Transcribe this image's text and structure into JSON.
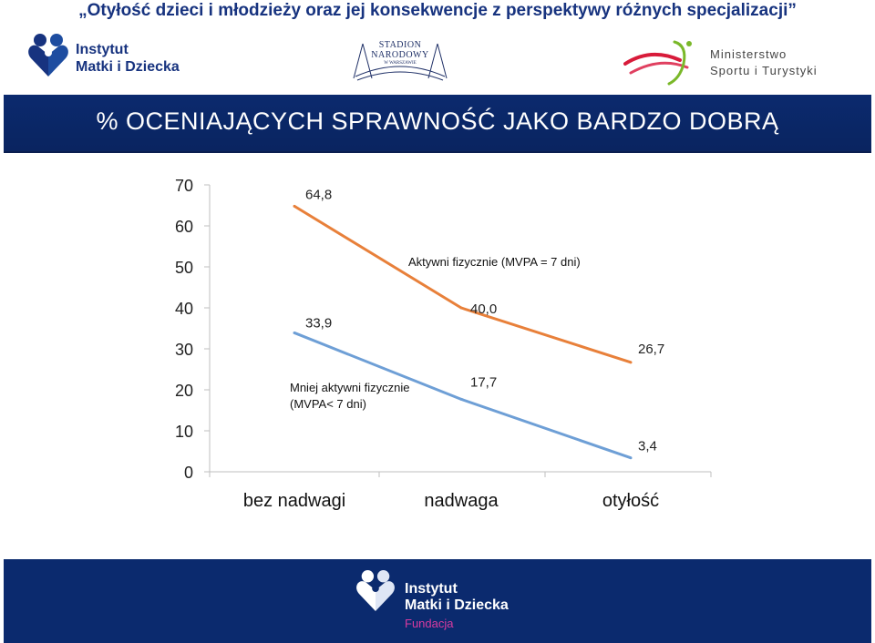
{
  "header": {
    "title": "„Otyłość dzieci i młodzieży oraz jej konsekwencje z perspektywy różnych specjalizacji”"
  },
  "logos": {
    "imid": {
      "line1": "Instytut",
      "line2": "Matki i Dziecka",
      "colors": [
        "#17337f",
        "#1e4da0"
      ]
    },
    "stadion": {
      "line1": "STADION",
      "line2": "NARODOWY",
      "line3": "W WARSZAWIE"
    },
    "ministry": {
      "line1": "Ministerstwo",
      "line2": "Sportu i Turystyki"
    },
    "footer": {
      "line1": "Instytut",
      "line2": "Matki i Dziecka",
      "line3": "Fundacja"
    }
  },
  "banner": {
    "title": "% OCENIAJĄCYCH SPRAWNOŚĆ JAKO BARDZO DOBRĄ",
    "color": "#0b2a6e"
  },
  "chart_data": {
    "type": "line",
    "categories": [
      "bez nadwagi",
      "nadwaga",
      "otyłość"
    ],
    "yticks": [
      "0",
      "10",
      "20",
      "30",
      "40",
      "50",
      "60",
      "70"
    ],
    "ylim": [
      0,
      70
    ],
    "grid": false,
    "series": [
      {
        "name": "Aktywni fizycznie (MVPA = 7 dni)",
        "values": [
          64.8,
          40.0,
          26.7
        ],
        "labels": [
          "64,8",
          "40,0",
          "26,7"
        ],
        "color": "#e8803a"
      },
      {
        "name": "Mniej aktywni fizycznie (MVPA< 7 dni)",
        "name_lines": [
          "Mniej aktywni fizycznie",
          "(MVPA< 7 dni)"
        ],
        "values": [
          33.9,
          17.7,
          3.4
        ],
        "labels": [
          "33,9",
          "17,7",
          "3,4"
        ],
        "color": "#6e9fd6"
      }
    ]
  }
}
